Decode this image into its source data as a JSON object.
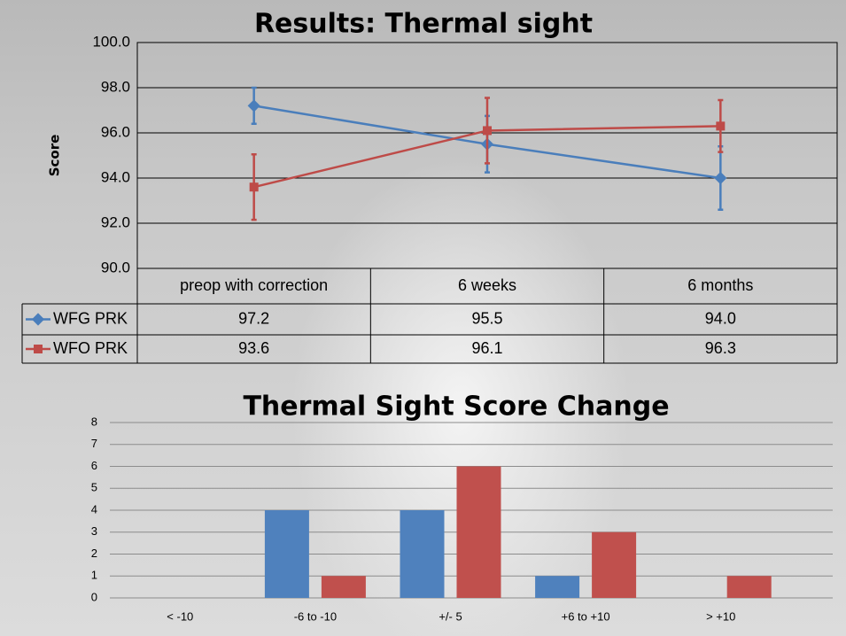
{
  "chart_data": [
    {
      "type": "line",
      "title": "Results: Thermal sight",
      "y_label": "Score",
      "categories": [
        "preop with correction",
        "6 weeks",
        "6 months"
      ],
      "series": [
        {
          "name": "WFG PRK",
          "color": "#4a7ebb",
          "values": [
            97.2,
            95.5,
            94.0
          ],
          "value_labels": [
            "97.2",
            "95.5",
            "94.0"
          ],
          "errors": [
            0.8,
            1.25,
            1.4
          ]
        },
        {
          "name": "WFO PRK",
          "color": "#be4b48",
          "values": [
            93.6,
            96.1,
            96.3
          ],
          "value_labels": [
            "93.6",
            "96.1",
            "96.3"
          ],
          "errors": [
            1.45,
            1.45,
            1.15
          ]
        }
      ],
      "ylim": [
        90,
        100
      ],
      "yticks": [
        {
          "value": 90,
          "label": "90.0"
        },
        {
          "value": 92,
          "label": "92.0"
        },
        {
          "value": 94,
          "label": "94.0"
        },
        {
          "value": 96,
          "label": "96.0"
        },
        {
          "value": 98,
          "label": "98.0"
        },
        {
          "value": 100,
          "label": "100.0"
        }
      ],
      "grid": true
    },
    {
      "type": "bar",
      "title": "Thermal Sight Score Change",
      "categories": [
        "< -10",
        "-6 to -10",
        "+/- 5",
        "+6 to +10",
        "> +10"
      ],
      "series": [
        {
          "color": "#4f81bd",
          "values": [
            0,
            4,
            4,
            1,
            0
          ]
        },
        {
          "color": "#c0504d",
          "values": [
            0,
            1,
            6,
            3,
            1
          ]
        }
      ],
      "ylim": [
        0,
        8
      ],
      "yticks": [
        0,
        1,
        2,
        3,
        4,
        5,
        6,
        7,
        8
      ],
      "grid": true
    }
  ]
}
